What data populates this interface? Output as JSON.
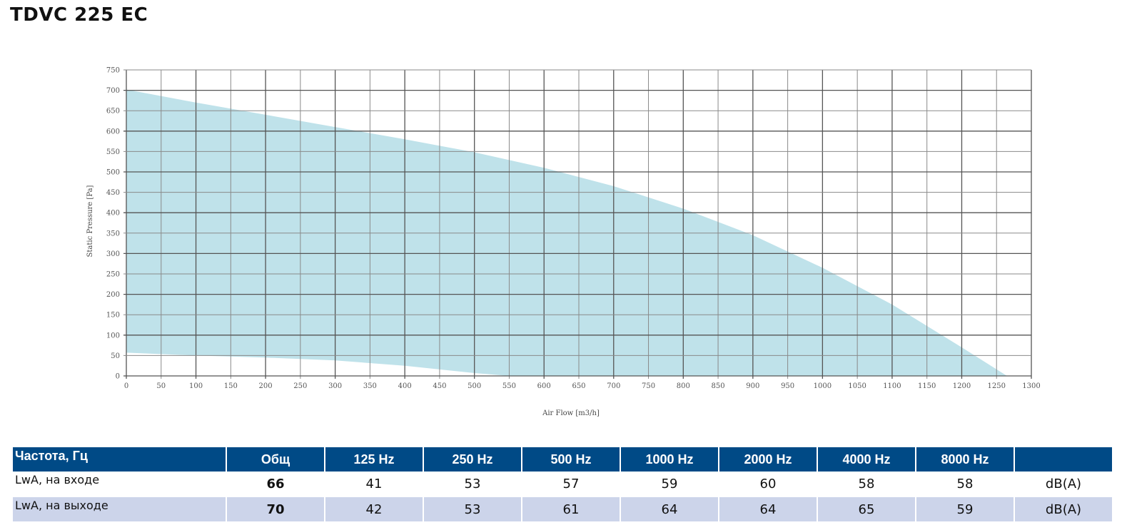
{
  "title": "TDVC 225 EC",
  "chart_data": {
    "type": "area",
    "xlabel": "Air Flow [m3/h]",
    "ylabel": "Static Pressure [Pa]",
    "xlim": [
      0,
      1300
    ],
    "ylim": [
      0,
      750
    ],
    "xticks": [
      0,
      50,
      100,
      150,
      200,
      250,
      300,
      350,
      400,
      450,
      500,
      550,
      600,
      650,
      700,
      750,
      800,
      850,
      900,
      950,
      1000,
      1050,
      1100,
      1150,
      1200,
      1250,
      1300
    ],
    "yticks": [
      0,
      50,
      100,
      150,
      200,
      250,
      300,
      350,
      400,
      450,
      500,
      550,
      600,
      650,
      700,
      750
    ],
    "grid": true,
    "fill_color": "#bfe2ea",
    "series": [
      {
        "role": "upper",
        "x": [
          0,
          100,
          200,
          300,
          400,
          500,
          600,
          700,
          800,
          900,
          1000,
          1100,
          1200,
          1265
        ],
        "y": [
          702,
          670,
          640,
          610,
          580,
          548,
          510,
          465,
          410,
          345,
          265,
          175,
          70,
          0
        ]
      },
      {
        "role": "lower",
        "x": [
          0,
          100,
          200,
          300,
          400,
          500,
          550
        ],
        "y": [
          57,
          50,
          45,
          38,
          25,
          7,
          0
        ]
      }
    ]
  },
  "table": {
    "headers": [
      "Частота, Гц",
      "Общ",
      "125 Hz",
      "250 Hz",
      "500 Hz",
      "1000 Hz",
      "2000 Hz",
      "4000 Hz",
      "8000 Hz",
      ""
    ],
    "rows": [
      {
        "label": "LwA, на входе",
        "total": "66",
        "values": [
          "41",
          "53",
          "57",
          "59",
          "60",
          "58",
          "58"
        ],
        "unit": "dB(A)"
      },
      {
        "label": "LwA, на выходе",
        "total": "70",
        "values": [
          "42",
          "53",
          "61",
          "64",
          "64",
          "65",
          "59"
        ],
        "unit": "dB(A)"
      }
    ]
  }
}
